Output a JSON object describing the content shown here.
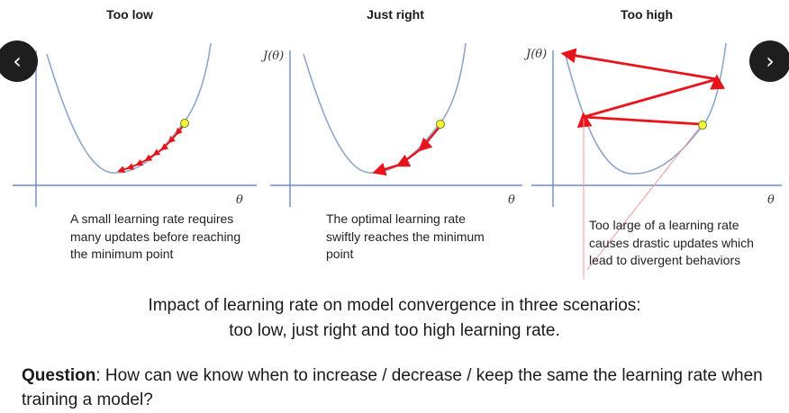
{
  "panels": [
    {
      "title": "Too low",
      "caption": "A small learning rate requires many updates before reaching the minimum point"
    },
    {
      "title": "Just right",
      "caption": "The optimal learning rate swiftly reaches the minimum point"
    },
    {
      "title": "Too high",
      "caption": "Too large of a learning rate causes drastic updates which lead to divergent behaviors"
    }
  ],
  "axes": {
    "ylabel": "J(θ)",
    "xlabel": "θ"
  },
  "summary": {
    "line1": "Impact of learning rate on model convergence in three scenarios:",
    "line2": "too low, just right and too high learning rate."
  },
  "question": {
    "label": "Question",
    "text": ": How can we know when to increase / decrease / keep the same the learning rate when training a model?"
  },
  "nav": {
    "prev_icon": "chevron-left-icon",
    "next_icon": "chevron-right-icon",
    "prev_glyph": "‹",
    "next_glyph": "›"
  },
  "colors": {
    "curve": "#8fa7cc",
    "axis": "#6a8cc7",
    "arrow": "#e8141c",
    "point_fill": "#f5f53a",
    "point_stroke": "#6f7f1f"
  }
}
